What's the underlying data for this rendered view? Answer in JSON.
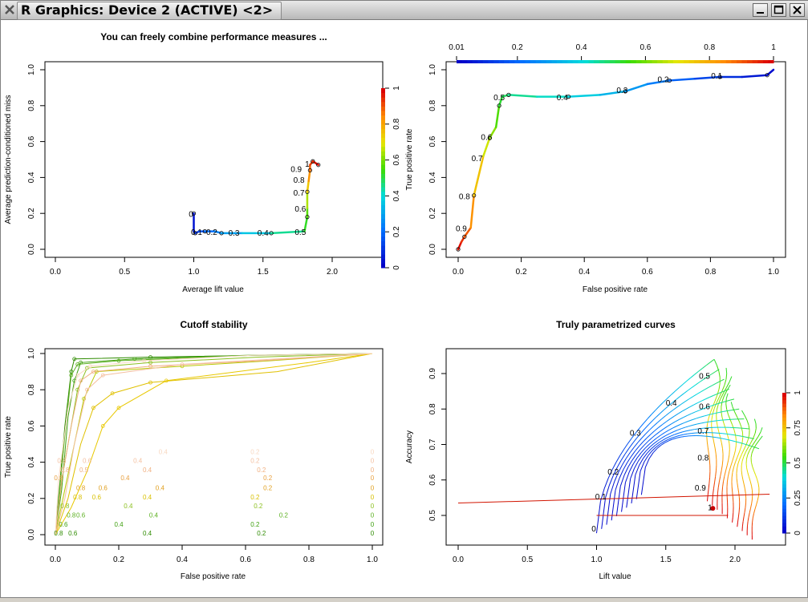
{
  "window": {
    "title": "R Graphics: Device 2 (ACTIVE) <2>",
    "buttons": [
      "minimize",
      "maximize",
      "close"
    ]
  },
  "chart_data": [
    {
      "type": "line",
      "title": "You can freely combine performance measures ...",
      "xlabel": "Average lift value",
      "ylabel": "Average prediction-conditioned miss",
      "xlim": [
        0,
        2.4
      ],
      "ylim": [
        0,
        1.0
      ],
      "xticks": [
        "0.0",
        "0.5",
        "1.0",
        "1.5",
        "2.0"
      ],
      "yticks": [
        "0.0",
        "0.2",
        "0.4",
        "0.6",
        "0.8",
        "1.0"
      ],
      "colorkey": {
        "title": "",
        "ticks": [
          "0",
          "0.2",
          "0.4",
          "0.6",
          "0.8",
          "1"
        ],
        "position": "right"
      },
      "curve": {
        "x": [
          1.0,
          1.0,
          1.01,
          1.04,
          1.08,
          1.15,
          1.2,
          1.35,
          1.56,
          1.8,
          1.82,
          1.82,
          1.82,
          1.83,
          1.84,
          1.84,
          1.86,
          1.88,
          1.9
        ],
        "y": [
          0.2,
          0.1,
          0.09,
          0.1,
          0.1,
          0.1,
          0.09,
          0.09,
          0.09,
          0.1,
          0.18,
          0.23,
          0.32,
          0.38,
          0.44,
          0.47,
          0.49,
          0.48,
          0.47
        ],
        "cutoff": [
          0.02,
          0.05,
          0.08,
          0.12,
          0.18,
          0.22,
          0.26,
          0.32,
          0.4,
          0.5,
          0.55,
          0.6,
          0.7,
          0.8,
          0.87,
          0.92,
          0.95,
          0.97,
          1.0
        ]
      },
      "labels": [
        {
          "text": "0",
          "x": 0.98,
          "y": 0.18
        },
        {
          "text": "0.1",
          "x": 1.02,
          "y": 0.08
        },
        {
          "text": "0.2",
          "x": 1.13,
          "y": 0.08
        },
        {
          "text": "0.3",
          "x": 1.29,
          "y": 0.075
        },
        {
          "text": "0.4",
          "x": 1.5,
          "y": 0.075
        },
        {
          "text": "0.5",
          "x": 1.77,
          "y": 0.08
        },
        {
          "text": "0.6",
          "x": 1.77,
          "y": 0.21
        },
        {
          "text": "0.7",
          "x": 1.76,
          "y": 0.3
        },
        {
          "text": "0.8",
          "x": 1.76,
          "y": 0.37
        },
        {
          "text": "0.9",
          "x": 1.74,
          "y": 0.43
        },
        {
          "text": "1",
          "x": 1.82,
          "y": 0.46
        }
      ]
    },
    {
      "type": "line",
      "title": "",
      "xlabel": "False positive rate",
      "ylabel": "True positive rate",
      "xlim": [
        0,
        1
      ],
      "ylim": [
        0,
        1.0
      ],
      "xticks": [
        "0.0",
        "0.2",
        "0.4",
        "0.6",
        "0.8",
        "1.0"
      ],
      "yticks": [
        "0.0",
        "0.2",
        "0.4",
        "0.6",
        "0.8",
        "1.0"
      ],
      "colorkey": {
        "title": "",
        "ticks": [
          "0.01",
          "0.2",
          "0.4",
          "0.6",
          "0.8",
          "1"
        ],
        "position": "top"
      },
      "curve": {
        "x": [
          0.0,
          0.01,
          0.02,
          0.04,
          0.05,
          0.08,
          0.1,
          0.12,
          0.13,
          0.14,
          0.16,
          0.25,
          0.35,
          0.45,
          0.53,
          0.6,
          0.67,
          0.75,
          0.83,
          0.9,
          0.98,
          1.0
        ],
        "y": [
          0.0,
          0.04,
          0.07,
          0.12,
          0.3,
          0.52,
          0.62,
          0.68,
          0.8,
          0.85,
          0.86,
          0.85,
          0.85,
          0.86,
          0.88,
          0.92,
          0.94,
          0.95,
          0.96,
          0.96,
          0.97,
          1.0
        ],
        "cutoff": [
          1.0,
          0.97,
          0.93,
          0.88,
          0.8,
          0.72,
          0.64,
          0.6,
          0.53,
          0.5,
          0.47,
          0.43,
          0.4,
          0.35,
          0.3,
          0.25,
          0.2,
          0.15,
          0.1,
          0.06,
          0.03,
          0.01
        ]
      },
      "labels": [
        {
          "text": "0.9",
          "x": 0.01,
          "y": 0.1
        },
        {
          "text": "0.8",
          "x": 0.02,
          "y": 0.28
        },
        {
          "text": "0.7",
          "x": 0.06,
          "y": 0.49
        },
        {
          "text": "0.6",
          "x": 0.09,
          "y": 0.61
        },
        {
          "text": "0.5",
          "x": 0.13,
          "y": 0.83
        },
        {
          "text": "0.4",
          "x": 0.33,
          "y": 0.83
        },
        {
          "text": "0.3",
          "x": 0.52,
          "y": 0.87
        },
        {
          "text": "0.2",
          "x": 0.65,
          "y": 0.93
        },
        {
          "text": "0.1",
          "x": 0.82,
          "y": 0.95
        }
      ]
    },
    {
      "type": "line",
      "title": "Cutoff stability",
      "xlabel": "False positive rate",
      "ylabel": "True positive rate",
      "xlim": [
        0,
        1
      ],
      "ylim": [
        0,
        1.0
      ],
      "xticks": [
        "0.0",
        "0.2",
        "0.4",
        "0.6",
        "0.8",
        "1.0"
      ],
      "yticks": [
        "0.0",
        "0.2",
        "0.4",
        "0.6",
        "0.8",
        "1.0"
      ],
      "series": [
        {
          "color": "#2e8b00",
          "x": [
            0,
            0.01,
            0.03,
            0.05,
            0.06,
            0.3,
            0.65,
            1.0
          ],
          "y": [
            0,
            0.2,
            0.6,
            0.9,
            0.97,
            0.98,
            0.99,
            1.0
          ]
        },
        {
          "color": "#3fa010",
          "x": [
            0,
            0.02,
            0.04,
            0.06,
            0.08,
            0.25,
            0.6,
            1.0
          ],
          "y": [
            0,
            0.25,
            0.65,
            0.85,
            0.95,
            0.97,
            0.99,
            1.0
          ]
        },
        {
          "color": "#5cb020",
          "x": [
            0,
            0.01,
            0.03,
            0.05,
            0.07,
            0.2,
            0.62,
            1.0
          ],
          "y": [
            0,
            0.18,
            0.55,
            0.88,
            0.94,
            0.96,
            0.99,
            1.0
          ]
        },
        {
          "color": "#8cc020",
          "x": [
            0,
            0.02,
            0.05,
            0.07,
            0.1,
            0.3,
            0.64,
            1.0
          ],
          "y": [
            0,
            0.3,
            0.6,
            0.8,
            0.92,
            0.95,
            0.98,
            1.0
          ]
        },
        {
          "color": "#b8c800",
          "x": [
            0,
            0.03,
            0.06,
            0.09,
            0.13,
            0.4,
            0.68,
            1.0
          ],
          "y": [
            0,
            0.25,
            0.5,
            0.75,
            0.9,
            0.93,
            0.96,
            1.0
          ]
        },
        {
          "color": "#e0c000",
          "x": [
            0,
            0.04,
            0.08,
            0.12,
            0.18,
            0.3,
            0.7,
            1.0
          ],
          "y": [
            0,
            0.2,
            0.5,
            0.7,
            0.78,
            0.84,
            0.9,
            1.0
          ]
        },
        {
          "color": "#e8c800",
          "x": [
            0,
            0.05,
            0.1,
            0.15,
            0.2,
            0.35,
            0.8,
            1.0
          ],
          "y": [
            0,
            0.15,
            0.35,
            0.6,
            0.7,
            0.85,
            0.95,
            1.0
          ]
        },
        {
          "color": "#f0b080",
          "x": [
            0,
            0.02,
            0.05,
            0.08,
            0.12,
            0.3,
            0.65,
            1.0
          ],
          "y": [
            0,
            0.3,
            0.6,
            0.85,
            0.9,
            0.93,
            0.96,
            1.0
          ]
        },
        {
          "color": "#f4c0a0",
          "x": [
            0,
            0.03,
            0.06,
            0.1,
            0.15,
            0.4,
            0.7,
            1.0
          ],
          "y": [
            0,
            0.2,
            0.5,
            0.8,
            0.88,
            0.94,
            0.97,
            1.0
          ]
        },
        {
          "color": "#f8d8c0",
          "x": [
            0,
            0.01,
            0.04,
            0.07,
            0.11,
            0.28,
            0.62,
            1.0
          ],
          "y": [
            0,
            0.3,
            0.7,
            0.88,
            0.93,
            0.96,
            0.99,
            1.0
          ]
        }
      ],
      "labels": [
        {
          "text": "0.8",
          "x": 0.01,
          "y": -0.005,
          "color": "#2e8b00"
        },
        {
          "text": "0.6",
          "x": 0.055,
          "y": -0.005,
          "color": "#2e8b00"
        },
        {
          "text": "0.4",
          "x": 0.29,
          "y": -0.005,
          "color": "#2e8b00"
        },
        {
          "text": "0.2",
          "x": 0.65,
          "y": -0.005,
          "color": "#2e8b00"
        },
        {
          "text": "0",
          "x": 1.0,
          "y": -0.005,
          "color": "#2e8b00"
        },
        {
          "text": "0.6",
          "x": 0.025,
          "y": 0.045,
          "color": "#3fa010"
        },
        {
          "text": "0.4",
          "x": 0.2,
          "y": 0.045,
          "color": "#3fa010"
        },
        {
          "text": "0.2",
          "x": 0.63,
          "y": 0.045,
          "color": "#3fa010"
        },
        {
          "text": "0",
          "x": 1.0,
          "y": 0.045,
          "color": "#3fa010"
        },
        {
          "text": "0.8",
          "x": 0.05,
          "y": 0.095,
          "color": "#5cb020"
        },
        {
          "text": "0.6",
          "x": 0.08,
          "y": 0.095,
          "color": "#5cb020"
        },
        {
          "text": "0.4",
          "x": 0.31,
          "y": 0.095,
          "color": "#5cb020"
        },
        {
          "text": "0.2",
          "x": 0.72,
          "y": 0.095,
          "color": "#5cb020"
        },
        {
          "text": "0",
          "x": 1.0,
          "y": 0.095,
          "color": "#5cb020"
        },
        {
          "text": "0.8",
          "x": 0.03,
          "y": 0.145,
          "color": "#8cc020"
        },
        {
          "text": "0.4",
          "x": 0.23,
          "y": 0.145,
          "color": "#8cc020"
        },
        {
          "text": "0.2",
          "x": 0.64,
          "y": 0.145,
          "color": "#8cc020"
        },
        {
          "text": "0",
          "x": 1.0,
          "y": 0.145,
          "color": "#8cc020"
        },
        {
          "text": "0.8",
          "x": 0.07,
          "y": 0.195,
          "color": "#d8c000"
        },
        {
          "text": "0.6",
          "x": 0.13,
          "y": 0.195,
          "color": "#d8c000"
        },
        {
          "text": "0.4",
          "x": 0.29,
          "y": 0.195,
          "color": "#d8c000"
        },
        {
          "text": "0.2",
          "x": 0.63,
          "y": 0.195,
          "color": "#d8c000"
        },
        {
          "text": "0",
          "x": 1.0,
          "y": 0.195,
          "color": "#d8c000"
        },
        {
          "text": "0.8",
          "x": 0.08,
          "y": 0.245,
          "color": "#e0a020"
        },
        {
          "text": "0.6",
          "x": 0.15,
          "y": 0.245,
          "color": "#e0a020"
        },
        {
          "text": "0.4",
          "x": 0.33,
          "y": 0.245,
          "color": "#e0a020"
        },
        {
          "text": "0.2",
          "x": 0.67,
          "y": 0.245,
          "color": "#e0a020"
        },
        {
          "text": "0",
          "x": 1.0,
          "y": 0.245,
          "color": "#e0a020"
        },
        {
          "text": "0.8",
          "x": 0.01,
          "y": 0.3,
          "color": "#e8a040"
        },
        {
          "text": "0.4",
          "x": 0.22,
          "y": 0.3,
          "color": "#e8a040"
        },
        {
          "text": "0.2",
          "x": 0.67,
          "y": 0.3,
          "color": "#e8a040"
        },
        {
          "text": "0",
          "x": 1.0,
          "y": 0.3,
          "color": "#e8a040"
        },
        {
          "text": "0.8",
          "x": 0.03,
          "y": 0.345,
          "color": "#f0b080"
        },
        {
          "text": "0.5",
          "x": 0.09,
          "y": 0.345,
          "color": "#f0b080"
        },
        {
          "text": "0.4",
          "x": 0.29,
          "y": 0.345,
          "color": "#f0b080"
        },
        {
          "text": "0.2",
          "x": 0.65,
          "y": 0.345,
          "color": "#f0b080"
        },
        {
          "text": "0",
          "x": 1.0,
          "y": 0.345,
          "color": "#f0b080"
        },
        {
          "text": "0.8",
          "x": 0.02,
          "y": 0.395,
          "color": "#f4c0a0"
        },
        {
          "text": "0.6",
          "x": 0.1,
          "y": 0.395,
          "color": "#f4c0a0"
        },
        {
          "text": "0.4",
          "x": 0.26,
          "y": 0.395,
          "color": "#f4c0a0"
        },
        {
          "text": "0.2",
          "x": 0.63,
          "y": 0.395,
          "color": "#f4c0a0"
        },
        {
          "text": "0",
          "x": 1.0,
          "y": 0.395,
          "color": "#f4c0a0"
        },
        {
          "text": "0.4",
          "x": 0.34,
          "y": 0.445,
          "color": "#f8d8c0"
        },
        {
          "text": "0.2",
          "x": 0.63,
          "y": 0.445,
          "color": "#f8d8c0"
        },
        {
          "text": "0",
          "x": 1.0,
          "y": 0.445,
          "color": "#f8d8c0"
        }
      ]
    },
    {
      "type": "line",
      "title": "Truly parametrized curves",
      "xlabel": "Lift value",
      "ylabel": "Accuracy",
      "xlim": [
        0,
        2.4
      ],
      "ylim": [
        0.43,
        0.98
      ],
      "xticks": [
        "0.0",
        "0.5",
        "1.0",
        "1.5",
        "2.0"
      ],
      "yticks": [
        "0.5",
        "0.6",
        "0.7",
        "0.8",
        "0.9"
      ],
      "colorkey": {
        "title": "",
        "ticks": [
          "0",
          "0.25",
          "0.5",
          "0.75",
          "1"
        ],
        "position": "right"
      },
      "labels": [
        {
          "text": "0",
          "x": 0.98,
          "y": 0.455
        },
        {
          "text": "0.1",
          "x": 1.03,
          "y": 0.545
        },
        {
          "text": "0.2",
          "x": 1.12,
          "y": 0.615
        },
        {
          "text": "0.3",
          "x": 1.28,
          "y": 0.725
        },
        {
          "text": "0.4",
          "x": 1.54,
          "y": 0.81
        },
        {
          "text": "0.5",
          "x": 1.78,
          "y": 0.885
        },
        {
          "text": "0.6",
          "x": 1.78,
          "y": 0.8
        },
        {
          "text": "0.7",
          "x": 1.77,
          "y": 0.73
        },
        {
          "text": "0.8",
          "x": 1.77,
          "y": 0.655
        },
        {
          "text": "0.9",
          "x": 1.75,
          "y": 0.57
        },
        {
          "text": "1",
          "x": 1.82,
          "y": 0.515
        }
      ]
    }
  ]
}
